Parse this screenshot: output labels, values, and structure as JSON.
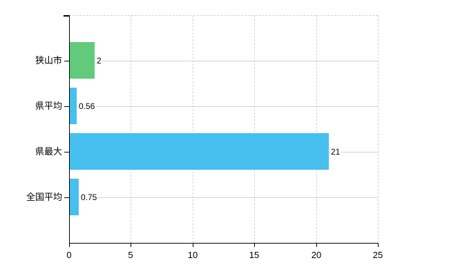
{
  "chart": {
    "background_color": "#ffffff"
  },
  "chart_data": {
    "type": "bar",
    "orientation": "horizontal",
    "title": "",
    "xlabel": "",
    "ylabel": "",
    "categories": [
      "狭山市",
      "県平均",
      "県最大",
      "全国平均"
    ],
    "values": [
      2,
      0.56,
      21,
      0.75
    ],
    "value_labels": [
      "2",
      "0.56",
      "21",
      "0.75"
    ],
    "bar_colors": [
      "#61cb7b",
      "#47bfef",
      "#47bfef",
      "#47bfef"
    ],
    "x_tick_labels": [
      "0",
      "5",
      "10",
      "15",
      "20",
      "25"
    ],
    "x_tick_values": [
      0,
      5,
      10,
      15,
      20,
      25
    ],
    "xlim": [
      0,
      25
    ],
    "legend": "none",
    "grid": {
      "vertical_style": "dashed",
      "horizontal_style": "solid",
      "top_border": "dashed",
      "right_border": "dashed"
    },
    "colors": {
      "axis": "#000000",
      "text": "#000000",
      "grid_solid": "#d0d5cc",
      "grid_dashed": "#d6cfd6",
      "value_label_background": "#ffffff"
    }
  }
}
